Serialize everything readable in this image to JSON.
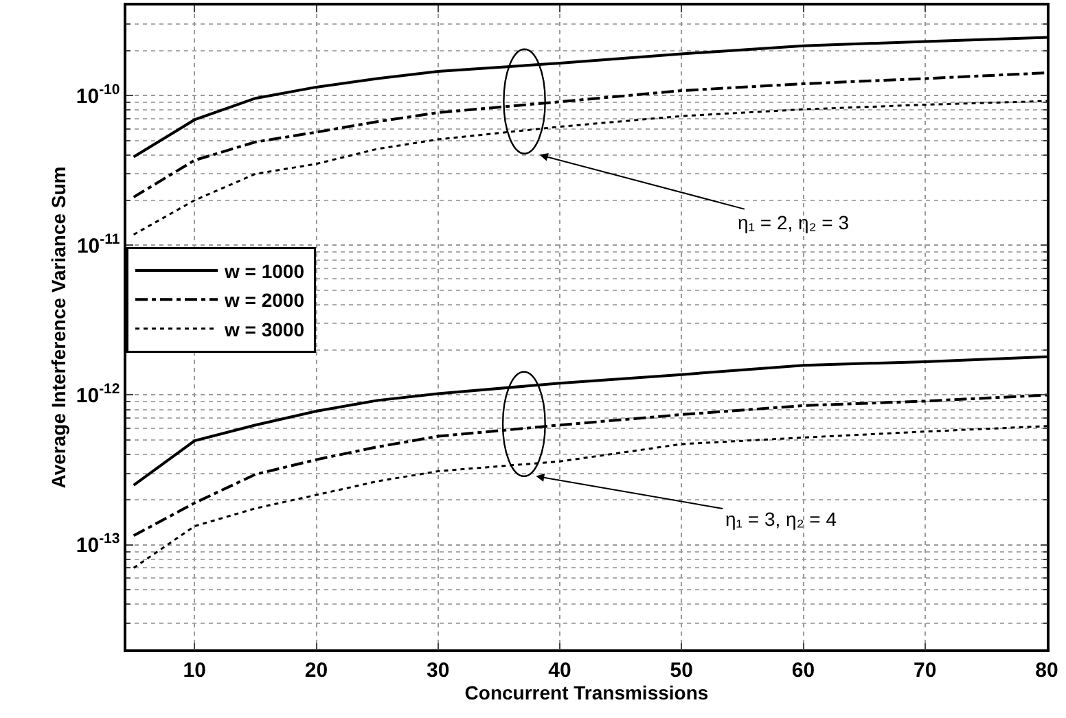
{
  "chart_data": {
    "type": "line",
    "xlabel": "Concurrent Transmissions",
    "ylabel": "Average Interference Variance Sum",
    "x": [
      5,
      10,
      15,
      20,
      25,
      30,
      40,
      50,
      60,
      70,
      80
    ],
    "series": [
      {
        "name": "w = 1000",
        "color": "#000000",
        "line_style": "solid",
        "values": [
          3.9e-11,
          6.9e-11,
          9.6e-11,
          1.14e-10,
          1.3e-10,
          1.45e-10,
          1.65e-10,
          1.9e-10,
          2.15e-10,
          2.3e-10,
          2.45e-10
        ]
      },
      {
        "name": "w = 2000",
        "color": "#000000",
        "line_style": "dashdot",
        "values": [
          2.1e-11,
          3.7e-11,
          4.9e-11,
          5.7e-11,
          6.7e-11,
          7.7e-11,
          9.1e-11,
          1.08e-10,
          1.2e-10,
          1.3e-10,
          1.42e-10
        ]
      },
      {
        "name": "w = 3000",
        "color": "#000000",
        "line_style": "dotted",
        "values": [
          1.18e-11,
          2e-11,
          3e-11,
          3.5e-11,
          4.4e-11,
          5.1e-11,
          6.2e-11,
          7.3e-11,
          8.1e-11,
          8.7e-11,
          9.2e-11
        ]
      },
      {
        "color": "#000000",
        "line_style": "solid",
        "values": [
          2.5e-13,
          4.95e-13,
          6.3e-13,
          7.8e-13,
          9.2e-13,
          1.02e-12,
          1.2e-12,
          1.37e-12,
          1.58e-12,
          1.67e-12,
          1.8e-12
        ]
      },
      {
        "color": "#000000",
        "line_style": "dashdot",
        "values": [
          1.15e-13,
          1.9e-13,
          2.95e-13,
          3.7e-13,
          4.5e-13,
          5.3e-13,
          6.3e-13,
          7.4e-13,
          8.5e-13,
          9.1e-13,
          1e-12
        ]
      },
      {
        "color": "#000000",
        "line_style": "dotted",
        "values": [
          7e-14,
          1.33e-13,
          1.75e-13,
          2.15e-13,
          2.65e-13,
          3.1e-13,
          3.6e-13,
          4.7e-13,
          5.2e-13,
          5.7e-13,
          6.2e-13
        ]
      }
    ],
    "xlim": [
      4.4,
      80
    ],
    "xticks": [
      10,
      20,
      30,
      40,
      50,
      60,
      70,
      80
    ],
    "ylim": [
      2e-14,
      4e-10
    ],
    "yticks": [
      {
        "value": 1e-13,
        "label": "10$^{-13}$"
      },
      {
        "value": 1e-12,
        "label": "10$^{-12}$"
      },
      {
        "value": 1e-11,
        "label": "10$^{-11}$"
      },
      {
        "value": 1e-10,
        "label": "10$^{-10}$"
      }
    ],
    "log": "y",
    "grid": true,
    "legend": "left",
    "marker": "none",
    "annotations": [
      "η₁ = 2, η₂ = 3",
      "η₁ = 3, η₂ = 4"
    ]
  }
}
